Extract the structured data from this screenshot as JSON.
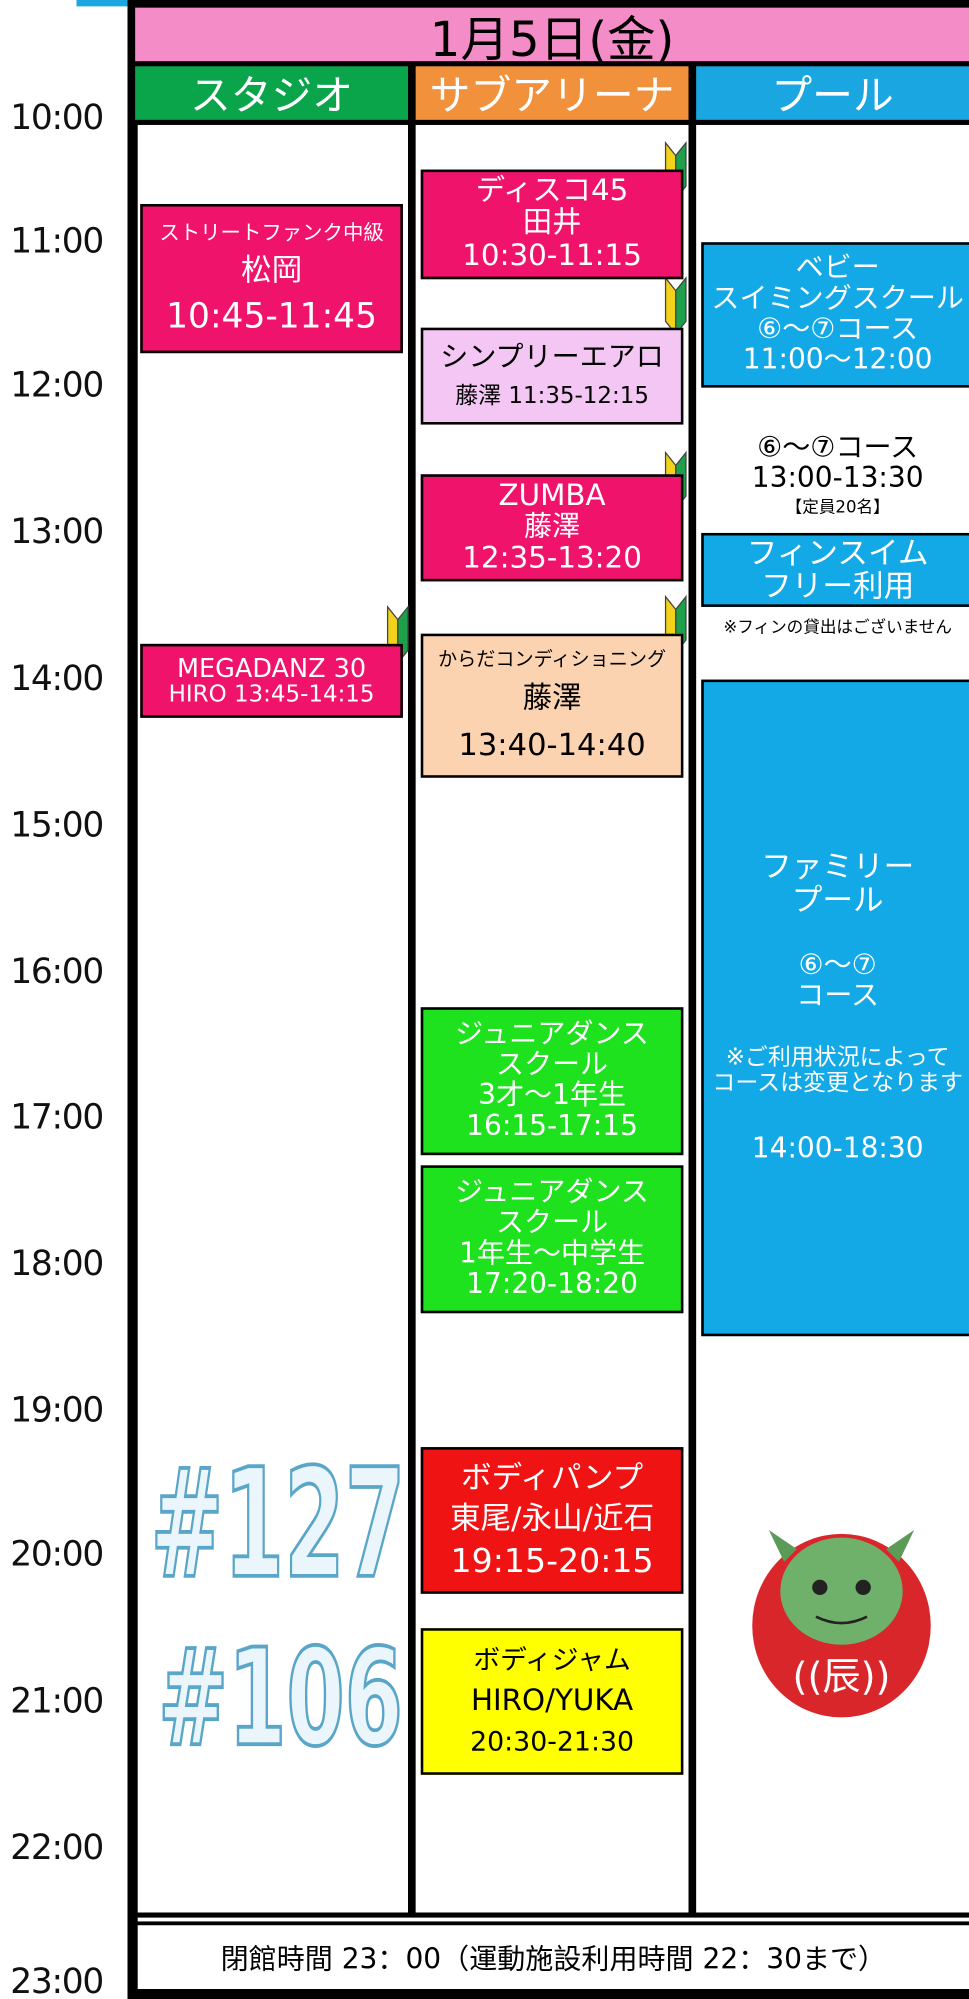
{
  "header": {
    "date": "1月5日(金)"
  },
  "columns": [
    "スタジオ",
    "サブアリーナ",
    "プール"
  ],
  "times": [
    "10:00",
    "11:00",
    "12:00",
    "13:00",
    "14:00",
    "15:00",
    "16:00",
    "17:00",
    "18:00",
    "19:00",
    "20:00",
    "21:00",
    "22:00",
    "23:00"
  ],
  "studio": {
    "events": [
      {
        "lines": [
          "ストリートファンク中級",
          "松岡",
          "10:45-11:45"
        ]
      },
      {
        "lines": [
          "MEGADANZ 30",
          "HIRO 13:45-14:15"
        ]
      }
    ]
  },
  "arena": {
    "events": [
      {
        "lines": [
          "ディスコ45",
          "田井",
          "10:30-11:15"
        ]
      },
      {
        "lines": [
          "シンプリーエアロ",
          "藤澤 11:35-12:15"
        ]
      },
      {
        "lines": [
          "ZUMBA",
          "藤澤",
          "12:35-13:20"
        ]
      },
      {
        "lines": [
          "からだコンディショニング",
          "藤澤",
          "13:40-14:40"
        ]
      },
      {
        "lines": [
          "ジュニアダンス",
          "スクール",
          "3才〜1年生",
          "16:15-17:15"
        ]
      },
      {
        "lines": [
          "ジュニアダンス",
          "スクール",
          "1年生〜中学生",
          "17:20-18:20"
        ]
      },
      {
        "lines": [
          "ボディパンプ",
          "東尾/永山/近石",
          "19:15-20:15"
        ]
      },
      {
        "lines": [
          "ボディジャム",
          "HIRO/YUKA",
          "20:30-21:30"
        ]
      }
    ]
  },
  "pool": {
    "events": [
      {
        "lines": [
          "ベビー",
          "スイミングスクール",
          "⑥〜⑦コース",
          "11:00〜12:00"
        ]
      },
      {
        "lines": [
          "⑥〜⑦コース",
          "13:00-13:30",
          "【定員20名】"
        ]
      },
      {
        "lines": [
          "フィンスイム",
          "フリー利用"
        ]
      },
      {
        "lines": [
          "※フィンの貸出はございません"
        ]
      },
      {
        "lines": [
          "ファミリー",
          "プール",
          "⑥〜⑦",
          "コース",
          "※ご利用状況によって",
          "コースは変更となります",
          "14:00-18:30"
        ]
      }
    ]
  },
  "overlay_numbers": [
    "#127",
    "#106"
  ],
  "footer": "閉館時間 23：00（運動施設利用時間 22：30まで）"
}
